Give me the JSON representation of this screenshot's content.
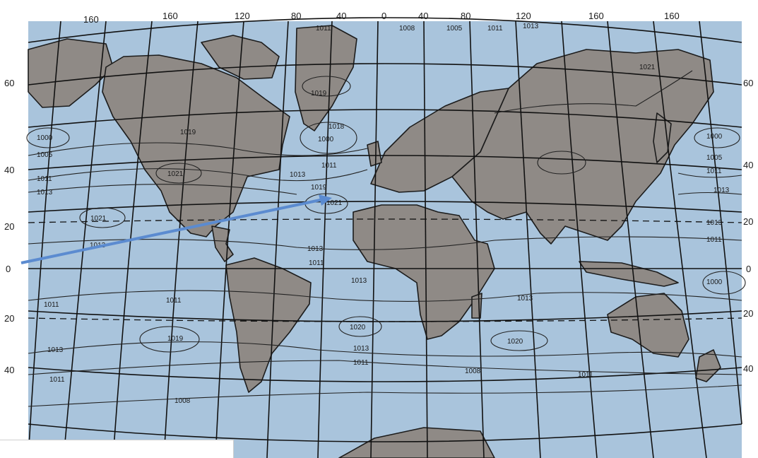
{
  "map": {
    "top_longitudes": [
      "160",
      "160",
      "120",
      "80",
      "40",
      "0",
      "40",
      "80",
      "120",
      "160",
      "160"
    ],
    "left_latitudes": [
      "60",
      "40",
      "20",
      "0",
      "20",
      "40"
    ],
    "right_latitudes": [
      "60",
      "40",
      "20",
      "0",
      "20",
      "40"
    ],
    "isobars": [
      "1011",
      "1008",
      "1005",
      "1011",
      "1013",
      "1021",
      "1019",
      "1000",
      "1005",
      "1011",
      "1013",
      "1019",
      "1021",
      "1013",
      "1000",
      "1011",
      "1021",
      "1018",
      "1019",
      "1013",
      "1011",
      "1013",
      "1013",
      "1011",
      "1011",
      "1021",
      "1013",
      "1019",
      "1013",
      "1020",
      "1013",
      "1011",
      "1020",
      "1008",
      "1011",
      "1000",
      "1011",
      "1013",
      "1011",
      "1013",
      "1005",
      "1000",
      "1011",
      "1008"
    ],
    "colors": {
      "ocean": "#a9c4dc",
      "land": "#8f8a86",
      "grid": "#111111",
      "arrow": "#5b8bd0"
    }
  }
}
